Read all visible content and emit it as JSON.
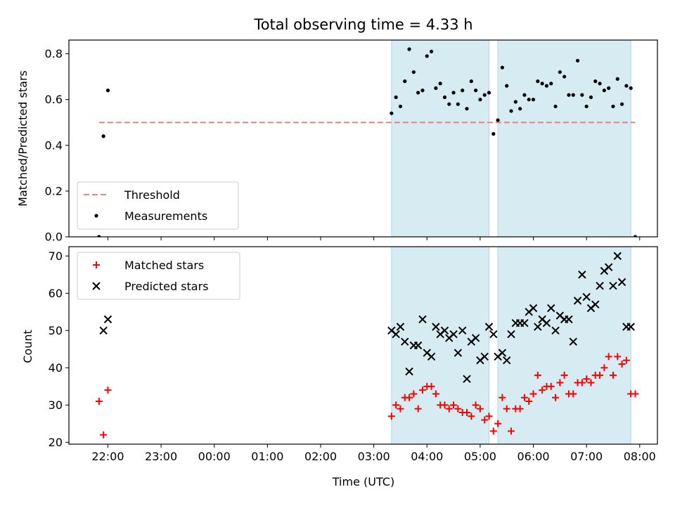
{
  "chart_data": [
    {
      "type": "scatter",
      "title": "Total observing time = 4.33 h",
      "ylabel": "Matched/Predicted stars",
      "xlim": [
        21.2667,
        8.3333
      ],
      "ylim": [
        0,
        0.86
      ],
      "yticks": [
        0.0,
        0.2,
        0.4,
        0.6,
        0.8
      ],
      "ytick_labels": [
        "0.0",
        "0.2",
        "0.4",
        "0.6",
        "0.8"
      ],
      "legend": {
        "placement": "lower-left",
        "entries": [
          "Threshold",
          "Measurements"
        ]
      },
      "shaded_regions": [
        {
          "start": "03:20",
          "end": "05:10"
        },
        {
          "start": "05:20",
          "end": "07:50"
        }
      ],
      "threshold": {
        "name": "Threshold",
        "value": 0.5,
        "x_start": "21:50",
        "x_end": "07:55",
        "color": "#f08080"
      },
      "series": [
        {
          "name": "Measurements",
          "color": "#000000",
          "x": [
            "21:50",
            "21:55",
            "22:00",
            "03:20",
            "03:25",
            "03:30",
            "03:35",
            "03:40",
            "03:45",
            "03:50",
            "03:55",
            "04:00",
            "04:05",
            "04:10",
            "04:15",
            "04:20",
            "04:25",
            "04:30",
            "04:35",
            "04:40",
            "04:45",
            "04:50",
            "04:55",
            "05:00",
            "05:05",
            "05:10",
            "05:15",
            "05:20",
            "05:25",
            "05:30",
            "05:35",
            "05:40",
            "05:45",
            "05:50",
            "05:55",
            "06:00",
            "06:05",
            "06:10",
            "06:15",
            "06:20",
            "06:25",
            "06:30",
            "06:35",
            "06:40",
            "06:45",
            "06:50",
            "06:55",
            "07:00",
            "07:05",
            "07:10",
            "07:15",
            "07:20",
            "07:25",
            "07:30",
            "07:35",
            "07:40",
            "07:45",
            "07:50",
            "07:55"
          ],
          "values": [
            0.0,
            0.44,
            0.64,
            0.54,
            0.61,
            0.57,
            0.68,
            0.82,
            0.72,
            0.63,
            0.64,
            0.79,
            0.81,
            0.65,
            0.67,
            0.61,
            0.58,
            0.63,
            0.58,
            0.64,
            0.56,
            0.68,
            0.64,
            0.6,
            0.62,
            0.63,
            0.45,
            0.51,
            0.74,
            0.66,
            0.55,
            0.59,
            0.56,
            0.62,
            0.6,
            0.6,
            0.68,
            0.67,
            0.66,
            0.67,
            0.57,
            0.72,
            0.7,
            0.62,
            0.62,
            0.77,
            0.62,
            0.57,
            0.61,
            0.68,
            0.67,
            0.64,
            0.65,
            0.57,
            0.69,
            0.58,
            0.66,
            0.65,
            0.0
          ]
        }
      ]
    },
    {
      "type": "scatter",
      "xlabel": "Time (UTC)",
      "ylabel": "Count",
      "xlim": [
        21.2667,
        8.3333
      ],
      "ylim": [
        19.5,
        72.5
      ],
      "yticks": [
        20,
        30,
        40,
        50,
        60,
        70
      ],
      "xticks": [
        "22:00",
        "23:00",
        "00:00",
        "01:00",
        "02:00",
        "03:00",
        "04:00",
        "05:00",
        "06:00",
        "07:00",
        "08:00"
      ],
      "legend": {
        "placement": "upper-left",
        "entries": [
          "Matched stars",
          "Predicted stars"
        ]
      },
      "shaded_regions": [
        {
          "start": "03:20",
          "end": "05:10"
        },
        {
          "start": "05:20",
          "end": "07:50"
        }
      ],
      "series": [
        {
          "name": "Matched stars",
          "color": "#ff0000",
          "marker": "plus",
          "x": [
            "21:50",
            "21:55",
            "22:00",
            "03:20",
            "03:25",
            "03:30",
            "03:35",
            "03:40",
            "03:45",
            "03:50",
            "03:55",
            "04:00",
            "04:05",
            "04:10",
            "04:15",
            "04:20",
            "04:25",
            "04:30",
            "04:35",
            "04:40",
            "04:45",
            "04:50",
            "04:55",
            "05:00",
            "05:05",
            "05:10",
            "05:15",
            "05:20",
            "05:25",
            "05:30",
            "05:35",
            "05:40",
            "05:45",
            "05:50",
            "05:55",
            "06:00",
            "06:05",
            "06:10",
            "06:15",
            "06:20",
            "06:25",
            "06:30",
            "06:35",
            "06:40",
            "06:45",
            "06:50",
            "06:55",
            "07:00",
            "07:05",
            "07:10",
            "07:15",
            "07:20",
            "07:25",
            "07:30",
            "07:35",
            "07:40",
            "07:45",
            "07:50",
            "07:55"
          ],
          "values": [
            31,
            22,
            34,
            27,
            30,
            29,
            32,
            32,
            33,
            29,
            34,
            35,
            35,
            33,
            30,
            30,
            29,
            30,
            29,
            28,
            28,
            27,
            30,
            29,
            26,
            27,
            23,
            25,
            32,
            29,
            23,
            29,
            29,
            32,
            31,
            33,
            38,
            34,
            35,
            35,
            32,
            36,
            38,
            33,
            33,
            36,
            36,
            37,
            36,
            38,
            38,
            40,
            43,
            38,
            43,
            41,
            42,
            33,
            33
          ]
        },
        {
          "name": "Predicted stars",
          "color": "#000000",
          "marker": "x",
          "x": [
            "21:55",
            "22:00",
            "03:20",
            "03:25",
            "03:30",
            "03:35",
            "03:40",
            "03:45",
            "03:50",
            "03:55",
            "04:00",
            "04:05",
            "04:10",
            "04:15",
            "04:20",
            "04:25",
            "04:30",
            "04:35",
            "04:40",
            "04:45",
            "04:50",
            "04:55",
            "05:00",
            "05:05",
            "05:10",
            "05:15",
            "05:20",
            "05:25",
            "05:30",
            "05:35",
            "05:40",
            "05:45",
            "05:50",
            "05:55",
            "06:00",
            "06:05",
            "06:10",
            "06:15",
            "06:20",
            "06:25",
            "06:30",
            "06:35",
            "06:40",
            "06:45",
            "06:50",
            "06:55",
            "07:00",
            "07:05",
            "07:10",
            "07:15",
            "07:20",
            "07:25",
            "07:30",
            "07:35",
            "07:40",
            "07:45",
            "07:50"
          ],
          "values": [
            50,
            53,
            50,
            49,
            51,
            47,
            39,
            46,
            46,
            53,
            44,
            43,
            51,
            49,
            50,
            48,
            49,
            44,
            50,
            37,
            47,
            48,
            42,
            43,
            51,
            49,
            43,
            44,
            42,
            49,
            52,
            52,
            52,
            55,
            56,
            51,
            53,
            52,
            56,
            50,
            54,
            53,
            53,
            47,
            58,
            65,
            59,
            56,
            57,
            62,
            66,
            67,
            62,
            70,
            63,
            51,
            51
          ]
        }
      ]
    }
  ]
}
